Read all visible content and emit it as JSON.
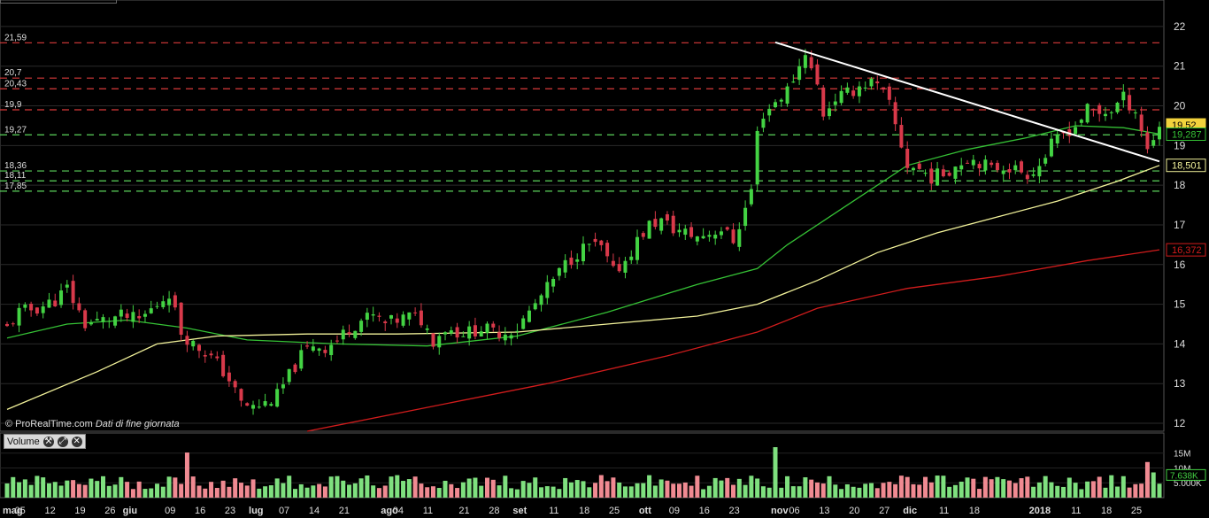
{
  "watermark": {
    "source": "© ProRealTime.com",
    "note": "Dati di fine giornata"
  },
  "volume_panel": {
    "label": "Volume"
  },
  "icons": [
    "wrench-icon",
    "expand-icon",
    "close-icon"
  ],
  "colors": {
    "up": "#43d343",
    "down": "#d8394a",
    "vol_up": "#7fe07f",
    "vol_down": "#f08a92",
    "ma_fast": "#35c135",
    "ma_mid": "#f2f29a",
    "ma_slow": "#d11c1c",
    "trendline": "#ffffff",
    "resistance": "#d93b3b",
    "support": "#5bd35b"
  },
  "chart_data": [
    {
      "type": "candlestick",
      "title": "",
      "xlabel": "",
      "ylabel": "",
      "ylim": [
        11.8,
        22.4
      ],
      "y_ticks": [
        "12",
        "13",
        "14",
        "15",
        "16",
        "17",
        "18",
        "19",
        "20",
        "21",
        "22"
      ],
      "grid": true,
      "x_ticks": [
        {
          "label": "mag",
          "month": true,
          "d": 0
        },
        {
          "label": "05",
          "d": 2
        },
        {
          "label": "12",
          "d": 7
        },
        {
          "label": "19",
          "d": 12
        },
        {
          "label": "26",
          "d": 17
        },
        {
          "label": "giu",
          "month": true,
          "d": 20
        },
        {
          "label": "09",
          "d": 27
        },
        {
          "label": "16",
          "d": 32
        },
        {
          "label": "23",
          "d": 37
        },
        {
          "label": "lug",
          "month": true,
          "d": 41
        },
        {
          "label": "07",
          "d": 46
        },
        {
          "label": "14",
          "d": 51
        },
        {
          "label": "21",
          "d": 56
        },
        {
          "label": "ago",
          "month": true,
          "d": 63
        },
        {
          "label": "04",
          "d": 65
        },
        {
          "label": "11",
          "d": 70
        },
        {
          "label": "21",
          "d": 76
        },
        {
          "label": "28",
          "d": 81
        },
        {
          "label": "set",
          "month": true,
          "d": 85
        },
        {
          "label": "11",
          "d": 91
        },
        {
          "label": "18",
          "d": 96
        },
        {
          "label": "25",
          "d": 101
        },
        {
          "label": "ott",
          "month": true,
          "d": 106
        },
        {
          "label": "09",
          "d": 111
        },
        {
          "label": "16",
          "d": 116
        },
        {
          "label": "23",
          "d": 121
        },
        {
          "label": "nov",
          "month": true,
          "d": 128
        },
        {
          "label": "06",
          "d": 131
        },
        {
          "label": "13",
          "d": 136
        },
        {
          "label": "20",
          "d": 141
        },
        {
          "label": "27",
          "d": 146
        },
        {
          "label": "dic",
          "month": true,
          "d": 150
        },
        {
          "label": "11",
          "d": 156
        },
        {
          "label": "18",
          "d": 161
        },
        {
          "label": "2018",
          "month": true,
          "d": 171
        },
        {
          "label": "11",
          "d": 178
        },
        {
          "label": "18",
          "d": 183
        },
        {
          "label": "25",
          "d": 188
        }
      ],
      "horizontal_levels": [
        {
          "value": 21.59,
          "label": "21,59",
          "kind": "resistance"
        },
        {
          "value": 20.7,
          "label": "20,7",
          "kind": "resistance"
        },
        {
          "value": 20.43,
          "label": "20,43",
          "kind": "resistance"
        },
        {
          "value": 19.9,
          "label": "19,9",
          "kind": "resistance"
        },
        {
          "value": 19.27,
          "label": "19,27",
          "kind": "support"
        },
        {
          "value": 18.36,
          "label": "18,36",
          "kind": "support"
        },
        {
          "value": 18.11,
          "label": "18,11",
          "kind": "support"
        },
        {
          "value": 17.85,
          "label": "17,85",
          "kind": "support"
        }
      ],
      "price_tags": [
        {
          "value": 19.52,
          "label": "19,52",
          "style": "last"
        },
        {
          "value": 19.287,
          "label": "19,287",
          "style": "ma_fast"
        },
        {
          "value": 18.501,
          "label": "18,501",
          "style": "ma_mid"
        },
        {
          "value": 16.372,
          "label": "16,372",
          "style": "ma_slow"
        }
      ],
      "trendline": {
        "from": [
          128,
          21.6
        ],
        "to": [
          192,
          18.6
        ]
      },
      "close_points": [
        [
          0,
          14.4
        ],
        [
          2,
          14.8
        ],
        [
          5,
          14.9
        ],
        [
          8,
          15.1
        ],
        [
          10,
          15.4
        ],
        [
          13,
          14.5
        ],
        [
          16,
          14.6
        ],
        [
          19,
          14.7
        ],
        [
          22,
          14.6
        ],
        [
          25,
          15.0
        ],
        [
          27,
          15.3
        ],
        [
          29,
          14.3
        ],
        [
          31,
          14.0
        ],
        [
          33,
          13.8
        ],
        [
          35,
          13.5
        ],
        [
          37,
          13.1
        ],
        [
          39,
          12.5
        ],
        [
          41,
          12.4
        ],
        [
          43,
          12.5
        ],
        [
          45,
          12.7
        ],
        [
          47,
          13.2
        ],
        [
          49,
          13.7
        ],
        [
          51,
          14.0
        ],
        [
          53,
          13.9
        ],
        [
          55,
          14.1
        ],
        [
          57,
          14.4
        ],
        [
          59,
          14.6
        ],
        [
          61,
          14.7
        ],
        [
          63,
          14.5
        ],
        [
          65,
          14.6
        ],
        [
          67,
          14.7
        ],
        [
          69,
          14.6
        ],
        [
          71,
          14.1
        ],
        [
          73,
          14.4
        ],
        [
          75,
          14.3
        ],
        [
          77,
          14.3
        ],
        [
          79,
          14.4
        ],
        [
          81,
          14.3
        ],
        [
          83,
          14.3
        ],
        [
          85,
          14.4
        ],
        [
          87,
          14.8
        ],
        [
          89,
          15.2
        ],
        [
          91,
          15.6
        ],
        [
          93,
          16.0
        ],
        [
          95,
          16.3
        ],
        [
          97,
          16.5
        ],
        [
          99,
          16.4
        ],
        [
          101,
          15.8
        ],
        [
          103,
          16.1
        ],
        [
          105,
          16.6
        ],
        [
          107,
          17.0
        ],
        [
          109,
          17.1
        ],
        [
          111,
          16.9
        ],
        [
          113,
          16.8
        ],
        [
          115,
          16.7
        ],
        [
          117,
          16.8
        ],
        [
          119,
          16.9
        ],
        [
          121,
          16.6
        ],
        [
          123,
          17.4
        ],
        [
          124,
          17.9
        ],
        [
          125,
          19.3
        ],
        [
          126,
          19.8
        ],
        [
          128,
          20.1
        ],
        [
          130,
          20.4
        ],
        [
          132,
          21.0
        ],
        [
          133,
          21.4
        ],
        [
          134,
          20.9
        ],
        [
          135,
          20.5
        ],
        [
          136,
          19.8
        ],
        [
          138,
          20.2
        ],
        [
          140,
          20.3
        ],
        [
          142,
          20.5
        ],
        [
          144,
          20.6
        ],
        [
          146,
          20.3
        ],
        [
          147,
          20.0
        ],
        [
          148,
          19.5
        ],
        [
          150,
          18.5
        ],
        [
          152,
          18.4
        ],
        [
          154,
          18.2
        ],
        [
          156,
          18.3
        ],
        [
          158,
          18.5
        ],
        [
          160,
          18.7
        ],
        [
          162,
          18.6
        ],
        [
          164,
          18.4
        ],
        [
          166,
          18.5
        ],
        [
          168,
          18.4
        ],
        [
          170,
          18.3
        ],
        [
          172,
          18.5
        ],
        [
          174,
          19.0
        ],
        [
          176,
          19.3
        ],
        [
          178,
          19.5
        ],
        [
          180,
          19.9
        ],
        [
          182,
          19.8
        ],
        [
          184,
          19.9
        ],
        [
          186,
          20.2
        ],
        [
          188,
          19.9
        ],
        [
          190,
          18.9
        ],
        [
          191,
          19.2
        ],
        [
          192,
          19.52
        ]
      ],
      "series": [
        {
          "kind": "ma_fast",
          "values": [
            [
              0,
              14.15
            ],
            [
              10,
              14.5
            ],
            [
              20,
              14.6
            ],
            [
              30,
              14.4
            ],
            [
              40,
              14.1
            ],
            [
              55,
              14.0
            ],
            [
              70,
              13.95
            ],
            [
              85,
              14.2
            ],
            [
              100,
              14.8
            ],
            [
              115,
              15.5
            ],
            [
              125,
              15.9
            ],
            [
              130,
              16.5
            ],
            [
              140,
              17.5
            ],
            [
              150,
              18.5
            ],
            [
              160,
              18.9
            ],
            [
              170,
              19.2
            ],
            [
              178,
              19.5
            ],
            [
              186,
              19.45
            ],
            [
              192,
              19.29
            ]
          ]
        },
        {
          "kind": "ma_mid",
          "values": [
            [
              0,
              12.35
            ],
            [
              15,
              13.3
            ],
            [
              25,
              14.0
            ],
            [
              35,
              14.2
            ],
            [
              50,
              14.25
            ],
            [
              65,
              14.25
            ],
            [
              85,
              14.3
            ],
            [
              100,
              14.5
            ],
            [
              115,
              14.7
            ],
            [
              125,
              15.0
            ],
            [
              135,
              15.6
            ],
            [
              145,
              16.3
            ],
            [
              155,
              16.8
            ],
            [
              165,
              17.2
            ],
            [
              175,
              17.6
            ],
            [
              185,
              18.1
            ],
            [
              192,
              18.5
            ]
          ]
        },
        {
          "kind": "ma_slow",
          "values": [
            [
              50,
              11.8
            ],
            [
              70,
              12.4
            ],
            [
              90,
              13.0
            ],
            [
              110,
              13.7
            ],
            [
              125,
              14.3
            ],
            [
              135,
              14.9
            ],
            [
              150,
              15.4
            ],
            [
              165,
              15.7
            ],
            [
              180,
              16.1
            ],
            [
              192,
              16.372
            ]
          ]
        }
      ]
    },
    {
      "type": "bar",
      "title": "Volume",
      "ylim": [
        0,
        17000000
      ],
      "y_ticks": [
        "5.000K",
        "10M",
        "15M"
      ],
      "last_value": {
        "value": 7638000,
        "label": "7.638K"
      },
      "spikes": [
        [
          30,
          15200000
        ],
        [
          128,
          17000000
        ],
        [
          190,
          12000000
        ],
        [
          191,
          8500000
        ]
      ]
    }
  ]
}
